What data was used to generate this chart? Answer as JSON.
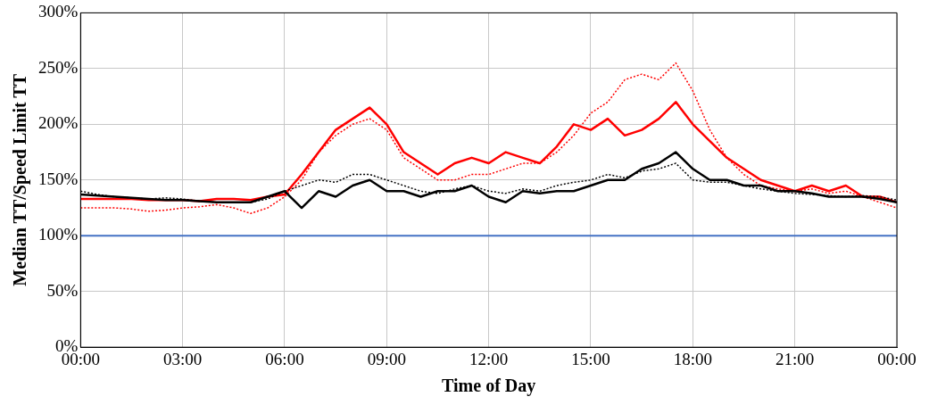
{
  "chart_data": {
    "type": "line",
    "xlabel": "Time of Day",
    "ylabel": "Median TT/Speed Limit TT",
    "x": [
      0,
      0.5,
      1,
      1.5,
      2,
      2.5,
      3,
      3.5,
      4,
      4.5,
      5,
      5.5,
      6,
      6.5,
      7,
      7.5,
      8,
      8.5,
      9,
      9.5,
      10,
      10.5,
      11,
      11.5,
      12,
      12.5,
      13,
      13.5,
      14,
      14.5,
      15,
      15.5,
      16,
      16.5,
      17,
      17.5,
      18,
      18.5,
      19,
      19.5,
      20,
      20.5,
      21,
      21.5,
      22,
      22.5,
      23,
      23.5,
      24
    ],
    "series": [
      {
        "color": "#000000",
        "line_style": "dotted",
        "values": [
          140,
          137,
          135,
          134,
          133,
          134,
          133,
          131,
          130,
          130,
          130,
          133,
          140,
          145,
          150,
          148,
          155,
          155,
          150,
          145,
          140,
          138,
          142,
          145,
          140,
          138,
          142,
          140,
          145,
          148,
          150,
          155,
          152,
          158,
          160,
          165,
          150,
          148,
          148,
          145,
          142,
          140,
          138,
          137,
          136,
          135,
          136,
          135,
          132
        ]
      },
      {
        "color": "#000000",
        "line_style": "solid",
        "values": [
          137,
          136,
          135,
          134,
          133,
          132,
          132,
          131,
          130,
          130,
          130,
          135,
          140,
          125,
          140,
          135,
          145,
          150,
          140,
          140,
          135,
          140,
          140,
          145,
          135,
          130,
          140,
          138,
          140,
          140,
          145,
          150,
          150,
          160,
          165,
          175,
          160,
          150,
          150,
          145,
          145,
          140,
          140,
          138,
          135,
          135,
          135,
          133,
          130
        ]
      },
      {
        "color": "#ff0000",
        "line_style": "dotted",
        "values": [
          125,
          125,
          125,
          124,
          122,
          123,
          125,
          126,
          128,
          125,
          120,
          125,
          135,
          150,
          175,
          190,
          200,
          205,
          195,
          170,
          160,
          150,
          150,
          155,
          155,
          160,
          165,
          165,
          175,
          190,
          210,
          220,
          240,
          245,
          240,
          255,
          230,
          195,
          170,
          155,
          145,
          142,
          140,
          142,
          138,
          140,
          135,
          130,
          125
        ]
      },
      {
        "color": "#ff0000",
        "line_style": "solid",
        "values": [
          133,
          133,
          133,
          133,
          132,
          132,
          132,
          131,
          133,
          133,
          132,
          135,
          137,
          155,
          175,
          195,
          205,
          215,
          200,
          175,
          165,
          155,
          165,
          170,
          165,
          175,
          170,
          165,
          180,
          200,
          195,
          205,
          190,
          195,
          205,
          220,
          200,
          185,
          170,
          160,
          150,
          145,
          140,
          145,
          140,
          145,
          135,
          135,
          130
        ]
      }
    ],
    "xlim": [
      0,
      24
    ],
    "xticks": [
      {
        "value": 0,
        "label": "00:00"
      },
      {
        "value": 3,
        "label": "03:00"
      },
      {
        "value": 6,
        "label": "06:00"
      },
      {
        "value": 9,
        "label": "09:00"
      },
      {
        "value": 12,
        "label": "12:00"
      },
      {
        "value": 15,
        "label": "15:00"
      },
      {
        "value": 18,
        "label": "18:00"
      },
      {
        "value": 21,
        "label": "21:00"
      },
      {
        "value": 24,
        "label": "00:00"
      }
    ],
    "ylim": [
      0,
      300
    ],
    "yticks": [
      {
        "value": 0,
        "label": "0%"
      },
      {
        "value": 50,
        "label": "50%"
      },
      {
        "value": 100,
        "label": "100%"
      },
      {
        "value": 150,
        "label": "150%"
      },
      {
        "value": 200,
        "label": "200%"
      },
      {
        "value": 250,
        "label": "250%"
      },
      {
        "value": 300,
        "label": "300%"
      }
    ],
    "ref_lines": [
      {
        "axis": "y",
        "value": 100,
        "color": "#4472c4"
      }
    ],
    "grid": true,
    "legend": false,
    "marker": "none"
  }
}
